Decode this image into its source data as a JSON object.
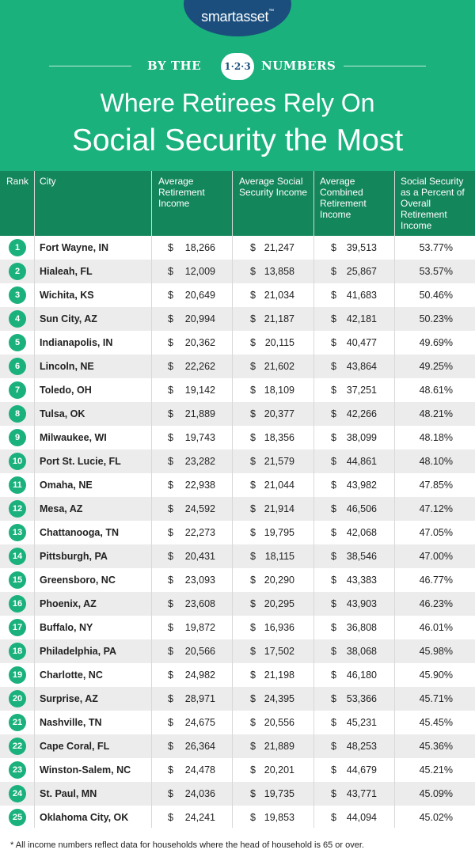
{
  "header": {
    "logo": "smartasset",
    "logo_tm": "™",
    "by_the": "BY THE",
    "badge": "1·2·3",
    "numbers": "NUMBERS",
    "title_line1": "Where Retirees Rely On",
    "title_line2": "Social Security the Most"
  },
  "columns": {
    "rank": "Rank",
    "city": "City",
    "retirement": "Average Retirement Income",
    "social": "Average Social Security Income",
    "combined": "Average Combined Retirement Income",
    "percent": "Social Security as a Percent of Overall Retirement Income"
  },
  "currency": "$",
  "rows": [
    {
      "rank": "1",
      "city": "Fort Wayne, IN",
      "ret": "18,266",
      "ss": "21,247",
      "comb": "39,513",
      "pct": "53.77%"
    },
    {
      "rank": "2",
      "city": "Hialeah, FL",
      "ret": "12,009",
      "ss": "13,858",
      "comb": "25,867",
      "pct": "53.57%"
    },
    {
      "rank": "3",
      "city": "Wichita, KS",
      "ret": "20,649",
      "ss": "21,034",
      "comb": "41,683",
      "pct": "50.46%"
    },
    {
      "rank": "4",
      "city": "Sun City, AZ",
      "ret": "20,994",
      "ss": "21,187",
      "comb": "42,181",
      "pct": "50.23%"
    },
    {
      "rank": "5",
      "city": "Indianapolis, IN",
      "ret": "20,362",
      "ss": "20,115",
      "comb": "40,477",
      "pct": "49.69%"
    },
    {
      "rank": "6",
      "city": "Lincoln, NE",
      "ret": "22,262",
      "ss": "21,602",
      "comb": "43,864",
      "pct": "49.25%"
    },
    {
      "rank": "7",
      "city": "Toledo, OH",
      "ret": "19,142",
      "ss": "18,109",
      "comb": "37,251",
      "pct": "48.61%"
    },
    {
      "rank": "8",
      "city": "Tulsa, OK",
      "ret": "21,889",
      "ss": "20,377",
      "comb": "42,266",
      "pct": "48.21%"
    },
    {
      "rank": "9",
      "city": "Milwaukee, WI",
      "ret": "19,743",
      "ss": "18,356",
      "comb": "38,099",
      "pct": "48.18%"
    },
    {
      "rank": "10",
      "city": "Port St. Lucie, FL",
      "ret": "23,282",
      "ss": "21,579",
      "comb": "44,861",
      "pct": "48.10%"
    },
    {
      "rank": "11",
      "city": "Omaha, NE",
      "ret": "22,938",
      "ss": "21,044",
      "comb": "43,982",
      "pct": "47.85%"
    },
    {
      "rank": "12",
      "city": "Mesa, AZ",
      "ret": "24,592",
      "ss": "21,914",
      "comb": "46,506",
      "pct": "47.12%"
    },
    {
      "rank": "13",
      "city": "Chattanooga, TN",
      "ret": "22,273",
      "ss": "19,795",
      "comb": "42,068",
      "pct": "47.05%"
    },
    {
      "rank": "14",
      "city": "Pittsburgh, PA",
      "ret": "20,431",
      "ss": "18,115",
      "comb": "38,546",
      "pct": "47.00%"
    },
    {
      "rank": "15",
      "city": "Greensboro, NC",
      "ret": "23,093",
      "ss": "20,290",
      "comb": "43,383",
      "pct": "46.77%"
    },
    {
      "rank": "16",
      "city": "Phoenix, AZ",
      "ret": "23,608",
      "ss": "20,295",
      "comb": "43,903",
      "pct": "46.23%"
    },
    {
      "rank": "17",
      "city": "Buffalo, NY",
      "ret": "19,872",
      "ss": "16,936",
      "comb": "36,808",
      "pct": "46.01%"
    },
    {
      "rank": "18",
      "city": "Philadelphia, PA",
      "ret": "20,566",
      "ss": "17,502",
      "comb": "38,068",
      "pct": "45.98%"
    },
    {
      "rank": "19",
      "city": "Charlotte, NC",
      "ret": "24,982",
      "ss": "21,198",
      "comb": "46,180",
      "pct": "45.90%"
    },
    {
      "rank": "20",
      "city": "Surprise, AZ",
      "ret": "28,971",
      "ss": "24,395",
      "comb": "53,366",
      "pct": "45.71%"
    },
    {
      "rank": "21",
      "city": "Nashville, TN",
      "ret": "24,675",
      "ss": "20,556",
      "comb": "45,231",
      "pct": "45.45%"
    },
    {
      "rank": "22",
      "city": "Cape Coral, FL",
      "ret": "26,364",
      "ss": "21,889",
      "comb": "48,253",
      "pct": "45.36%"
    },
    {
      "rank": "23",
      "city": "Winston-Salem, NC",
      "ret": "24,478",
      "ss": "20,201",
      "comb": "44,679",
      "pct": "45.21%"
    },
    {
      "rank": "24",
      "city": "St. Paul, MN",
      "ret": "24,036",
      "ss": "19,735",
      "comb": "43,771",
      "pct": "45.09%"
    },
    {
      "rank": "25",
      "city": "Oklahoma City, OK",
      "ret": "24,241",
      "ss": "19,853",
      "comb": "44,094",
      "pct": "45.02%"
    }
  ],
  "footnote": "* All income numbers reflect data for households where the head of household is 65 or over.",
  "colors": {
    "green": "#1ab17d",
    "dark_green": "#14865c",
    "navy": "#1b4e7d",
    "stripe": "#ececec"
  }
}
